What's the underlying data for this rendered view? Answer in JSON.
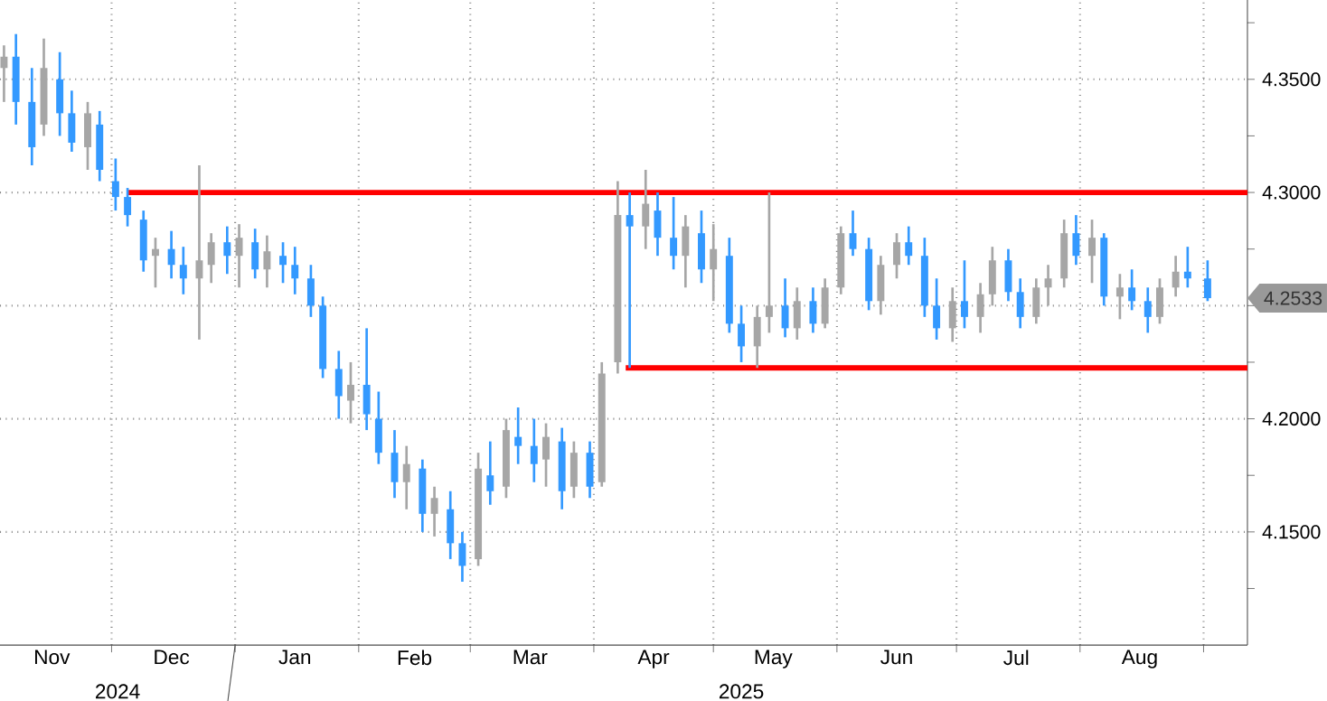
{
  "chart_data": {
    "type": "candlestick",
    "x": [
      "2024-11-04",
      "2024-11-07",
      "2024-11-11",
      "2024-11-14",
      "2024-11-18",
      "2024-11-21",
      "2024-11-25",
      "2024-11-28",
      "2024-12-02",
      "2024-12-05",
      "2024-12-09",
      "2024-12-12",
      "2024-12-16",
      "2024-12-19",
      "2024-12-23",
      "2024-12-26",
      "2024-12-30",
      "2025-01-02",
      "2025-01-06",
      "2025-01-09",
      "2025-01-13",
      "2025-01-16",
      "2025-01-20",
      "2025-01-23",
      "2025-01-27",
      "2025-01-30",
      "2025-02-03",
      "2025-02-06",
      "2025-02-10",
      "2025-02-13",
      "2025-02-17",
      "2025-02-20",
      "2025-02-24",
      "2025-02-27",
      "2025-03-03",
      "2025-03-06",
      "2025-03-10",
      "2025-03-13",
      "2025-03-17",
      "2025-03-20",
      "2025-03-24",
      "2025-03-27",
      "2025-03-31",
      "2025-04-03",
      "2025-04-07",
      "2025-04-10",
      "2025-04-14",
      "2025-04-17",
      "2025-04-21",
      "2025-04-24",
      "2025-04-28",
      "2025-05-01",
      "2025-05-05",
      "2025-05-08",
      "2025-05-12",
      "2025-05-15",
      "2025-05-19",
      "2025-05-22",
      "2025-05-26",
      "2025-05-29",
      "2025-06-02",
      "2025-06-05",
      "2025-06-09",
      "2025-06-12",
      "2025-06-16",
      "2025-06-19",
      "2025-06-23",
      "2025-06-26",
      "2025-06-30",
      "2025-07-03",
      "2025-07-07",
      "2025-07-10",
      "2025-07-14",
      "2025-07-17",
      "2025-07-21",
      "2025-07-24",
      "2025-07-28",
      "2025-07-31",
      "2025-08-04",
      "2025-08-07",
      "2025-08-11",
      "2025-08-14",
      "2025-08-18",
      "2025-08-21",
      "2025-08-25",
      "2025-08-28",
      "2025-09-02"
    ],
    "ohlc": [
      [
        4.355,
        4.365,
        4.34,
        4.36
      ],
      [
        4.36,
        4.37,
        4.33,
        4.34
      ],
      [
        4.34,
        4.355,
        4.312,
        4.32
      ],
      [
        4.33,
        4.368,
        4.325,
        4.355
      ],
      [
        4.35,
        4.362,
        4.325,
        4.335
      ],
      [
        4.335,
        4.345,
        4.318,
        4.322
      ],
      [
        4.32,
        4.34,
        4.31,
        4.335
      ],
      [
        4.33,
        4.336,
        4.305,
        4.31
      ],
      [
        4.305,
        4.315,
        4.292,
        4.298
      ],
      [
        4.298,
        4.302,
        4.285,
        4.29
      ],
      [
        4.288,
        4.292,
        4.265,
        4.27
      ],
      [
        4.272,
        4.28,
        4.258,
        4.275
      ],
      [
        4.275,
        4.283,
        4.262,
        4.268
      ],
      [
        4.268,
        4.276,
        4.255,
        4.262
      ],
      [
        4.262,
        4.312,
        4.235,
        4.27
      ],
      [
        4.268,
        4.282,
        4.26,
        4.278
      ],
      [
        4.278,
        4.285,
        4.264,
        4.272
      ],
      [
        4.272,
        4.286,
        4.258,
        4.28
      ],
      [
        4.278,
        4.284,
        4.262,
        4.266
      ],
      [
        4.266,
        4.281,
        4.258,
        4.274
      ],
      [
        4.272,
        4.278,
        4.26,
        4.268
      ],
      [
        4.268,
        4.276,
        4.255,
        4.262
      ],
      [
        4.262,
        4.268,
        4.245,
        4.25
      ],
      [
        4.25,
        4.254,
        4.218,
        4.222
      ],
      [
        4.222,
        4.23,
        4.2,
        4.21
      ],
      [
        4.208,
        4.225,
        4.198,
        4.215
      ],
      [
        4.215,
        4.24,
        4.195,
        4.202
      ],
      [
        4.2,
        4.212,
        4.18,
        4.185
      ],
      [
        4.185,
        4.195,
        4.165,
        4.172
      ],
      [
        4.172,
        4.188,
        4.16,
        4.18
      ],
      [
        4.178,
        4.182,
        4.15,
        4.158
      ],
      [
        4.158,
        4.17,
        4.148,
        4.165
      ],
      [
        4.16,
        4.168,
        4.138,
        4.145
      ],
      [
        4.145,
        4.15,
        4.128,
        4.135
      ],
      [
        4.138,
        4.185,
        4.135,
        4.178
      ],
      [
        4.175,
        4.19,
        4.162,
        4.168
      ],
      [
        4.17,
        4.2,
        4.165,
        4.195
      ],
      [
        4.192,
        4.205,
        4.18,
        4.188
      ],
      [
        4.188,
        4.2,
        4.172,
        4.18
      ],
      [
        4.182,
        4.198,
        4.17,
        4.192
      ],
      [
        4.19,
        4.196,
        4.16,
        4.168
      ],
      [
        4.17,
        4.19,
        4.165,
        4.185
      ],
      [
        4.185,
        4.19,
        4.165,
        4.17
      ],
      [
        4.172,
        4.225,
        4.17,
        4.22
      ],
      [
        4.225,
        4.305,
        4.22,
        4.29
      ],
      [
        4.29,
        4.3,
        4.2225,
        4.285
      ],
      [
        4.285,
        4.31,
        4.275,
        4.295
      ],
      [
        4.292,
        4.3,
        4.272,
        4.28
      ],
      [
        4.28,
        4.298,
        4.266,
        4.272
      ],
      [
        4.272,
        4.29,
        4.258,
        4.285
      ],
      [
        4.282,
        4.292,
        4.26,
        4.266
      ],
      [
        4.266,
        4.286,
        4.252,
        4.275
      ],
      [
        4.272,
        4.28,
        4.238,
        4.242
      ],
      [
        4.242,
        4.25,
        4.225,
        4.232
      ],
      [
        4.232,
        4.25,
        4.2225,
        4.245
      ],
      [
        4.245,
        4.3,
        4.238,
        4.25
      ],
      [
        4.25,
        4.262,
        4.236,
        4.24
      ],
      [
        4.24,
        4.258,
        4.235,
        4.252
      ],
      [
        4.252,
        4.258,
        4.238,
        4.242
      ],
      [
        4.242,
        4.262,
        4.24,
        4.258
      ],
      [
        4.258,
        4.285,
        4.255,
        4.282
      ],
      [
        4.282,
        4.292,
        4.272,
        4.275
      ],
      [
        4.275,
        4.28,
        4.248,
        4.252
      ],
      [
        4.252,
        4.272,
        4.246,
        4.268
      ],
      [
        4.268,
        4.282,
        4.262,
        4.278
      ],
      [
        4.278,
        4.285,
        4.268,
        4.272
      ],
      [
        4.272,
        4.28,
        4.245,
        4.25
      ],
      [
        4.25,
        4.262,
        4.235,
        4.24
      ],
      [
        4.24,
        4.258,
        4.234,
        4.252
      ],
      [
        4.252,
        4.27,
        4.24,
        4.245
      ],
      [
        4.245,
        4.26,
        4.238,
        4.255
      ],
      [
        4.255,
        4.276,
        4.25,
        4.27
      ],
      [
        4.27,
        4.275,
        4.252,
        4.256
      ],
      [
        4.256,
        4.262,
        4.24,
        4.245
      ],
      [
        4.245,
        4.262,
        4.242,
        4.258
      ],
      [
        4.258,
        4.268,
        4.25,
        4.262
      ],
      [
        4.262,
        4.288,
        4.258,
        4.282
      ],
      [
        4.282,
        4.29,
        4.268,
        4.272
      ],
      [
        4.272,
        4.288,
        4.26,
        4.28
      ],
      [
        4.28,
        4.282,
        4.25,
        4.254
      ],
      [
        4.254,
        4.264,
        4.244,
        4.258
      ],
      [
        4.258,
        4.266,
        4.248,
        4.252
      ],
      [
        4.252,
        4.258,
        4.238,
        4.245
      ],
      [
        4.245,
        4.262,
        4.242,
        4.258
      ],
      [
        4.258,
        4.272,
        4.254,
        4.265
      ],
      [
        4.265,
        4.276,
        4.258,
        4.262
      ],
      [
        4.262,
        4.27,
        4.252,
        4.2533
      ]
    ],
    "colors": [
      "#a6a6a6",
      "#3399ff",
      "#3399ff",
      "#a6a6a6",
      "#3399ff",
      "#3399ff",
      "#a6a6a6",
      "#3399ff",
      "#3399ff",
      "#3399ff",
      "#3399ff",
      "#a6a6a6",
      "#3399ff",
      "#3399ff",
      "#a6a6a6",
      "#a6a6a6",
      "#3399ff",
      "#a6a6a6",
      "#3399ff",
      "#a6a6a6",
      "#3399ff",
      "#3399ff",
      "#3399ff",
      "#3399ff",
      "#3399ff",
      "#a6a6a6",
      "#3399ff",
      "#3399ff",
      "#3399ff",
      "#a6a6a6",
      "#3399ff",
      "#a6a6a6",
      "#3399ff",
      "#3399ff",
      "#a6a6a6",
      "#3399ff",
      "#a6a6a6",
      "#3399ff",
      "#3399ff",
      "#a6a6a6",
      "#3399ff",
      "#a6a6a6",
      "#3399ff",
      "#a6a6a6",
      "#a6a6a6",
      "#3399ff",
      "#a6a6a6",
      "#3399ff",
      "#3399ff",
      "#a6a6a6",
      "#3399ff",
      "#a6a6a6",
      "#3399ff",
      "#3399ff",
      "#a6a6a6",
      "#a6a6a6",
      "#3399ff",
      "#a6a6a6",
      "#3399ff",
      "#a6a6a6",
      "#a6a6a6",
      "#3399ff",
      "#3399ff",
      "#a6a6a6",
      "#a6a6a6",
      "#3399ff",
      "#3399ff",
      "#3399ff",
      "#a6a6a6",
      "#3399ff",
      "#a6a6a6",
      "#a6a6a6",
      "#3399ff",
      "#3399ff",
      "#a6a6a6",
      "#a6a6a6",
      "#a6a6a6",
      "#3399ff",
      "#a6a6a6",
      "#3399ff",
      "#a6a6a6",
      "#3399ff",
      "#3399ff",
      "#a6a6a6",
      "#a6a6a6",
      "#3399ff",
      "#3399ff"
    ],
    "series": [
      {
        "type": "line",
        "color": "#ff0000",
        "x": [
          "2024-12-05",
          "2025-09-12"
        ],
        "values": [
          4.3,
          4.3
        ]
      },
      {
        "type": "line",
        "color": "#ff0000",
        "x": [
          "2025-04-09",
          "2025-09-12"
        ],
        "values": [
          4.2225,
          4.2225
        ]
      }
    ],
    "xlim": [
      "2024-11-03",
      "2025-09-12"
    ],
    "xticks": [
      {
        "value": "2024-11-16",
        "label": "Nov"
      },
      {
        "value": "2024-12-01",
        "label": null
      },
      {
        "value": "2024-12-16",
        "label": "Dec"
      },
      {
        "value": "2025-01-01",
        "label": null
      },
      {
        "value": "2025-01-16",
        "label": "Jan"
      },
      {
        "value": "2025-02-01",
        "label": null
      },
      {
        "value": "2025-02-15",
        "label": "Feb"
      },
      {
        "value": "2025-03-01",
        "label": null
      },
      {
        "value": "2025-03-16",
        "label": "Mar"
      },
      {
        "value": "2025-04-01",
        "label": null
      },
      {
        "value": "2025-04-16",
        "label": "Apr"
      },
      {
        "value": "2025-05-01",
        "label": null
      },
      {
        "value": "2025-05-16",
        "label": "May"
      },
      {
        "value": "2025-06-01",
        "label": null
      },
      {
        "value": "2025-06-16",
        "label": "Jun"
      },
      {
        "value": "2025-07-01",
        "label": null
      },
      {
        "value": "2025-07-16",
        "label": "Jul"
      },
      {
        "value": "2025-08-01",
        "label": null
      },
      {
        "value": "2025-08-16",
        "label": "Aug"
      },
      {
        "value": "2025-09-01",
        "label": null
      }
    ],
    "ylim": [
      4.1,
      4.385
    ],
    "yticks": [
      {
        "value": 4.125,
        "label": null
      },
      {
        "value": 4.15,
        "label": "4.1500"
      },
      {
        "value": 4.175,
        "label": null
      },
      {
        "value": 4.2,
        "label": "4.2000"
      },
      {
        "value": 4.225,
        "label": null
      },
      {
        "value": 4.25,
        "label": null
      },
      {
        "value": 4.275,
        "label": null
      },
      {
        "value": 4.3,
        "label": "4.3000"
      },
      {
        "value": 4.325,
        "label": null
      },
      {
        "value": 4.35,
        "label": "4.3500"
      },
      {
        "value": 4.375,
        "label": null
      }
    ],
    "grid": true,
    "annotations": [
      "2024",
      "2025",
      "4.2533"
    ]
  }
}
